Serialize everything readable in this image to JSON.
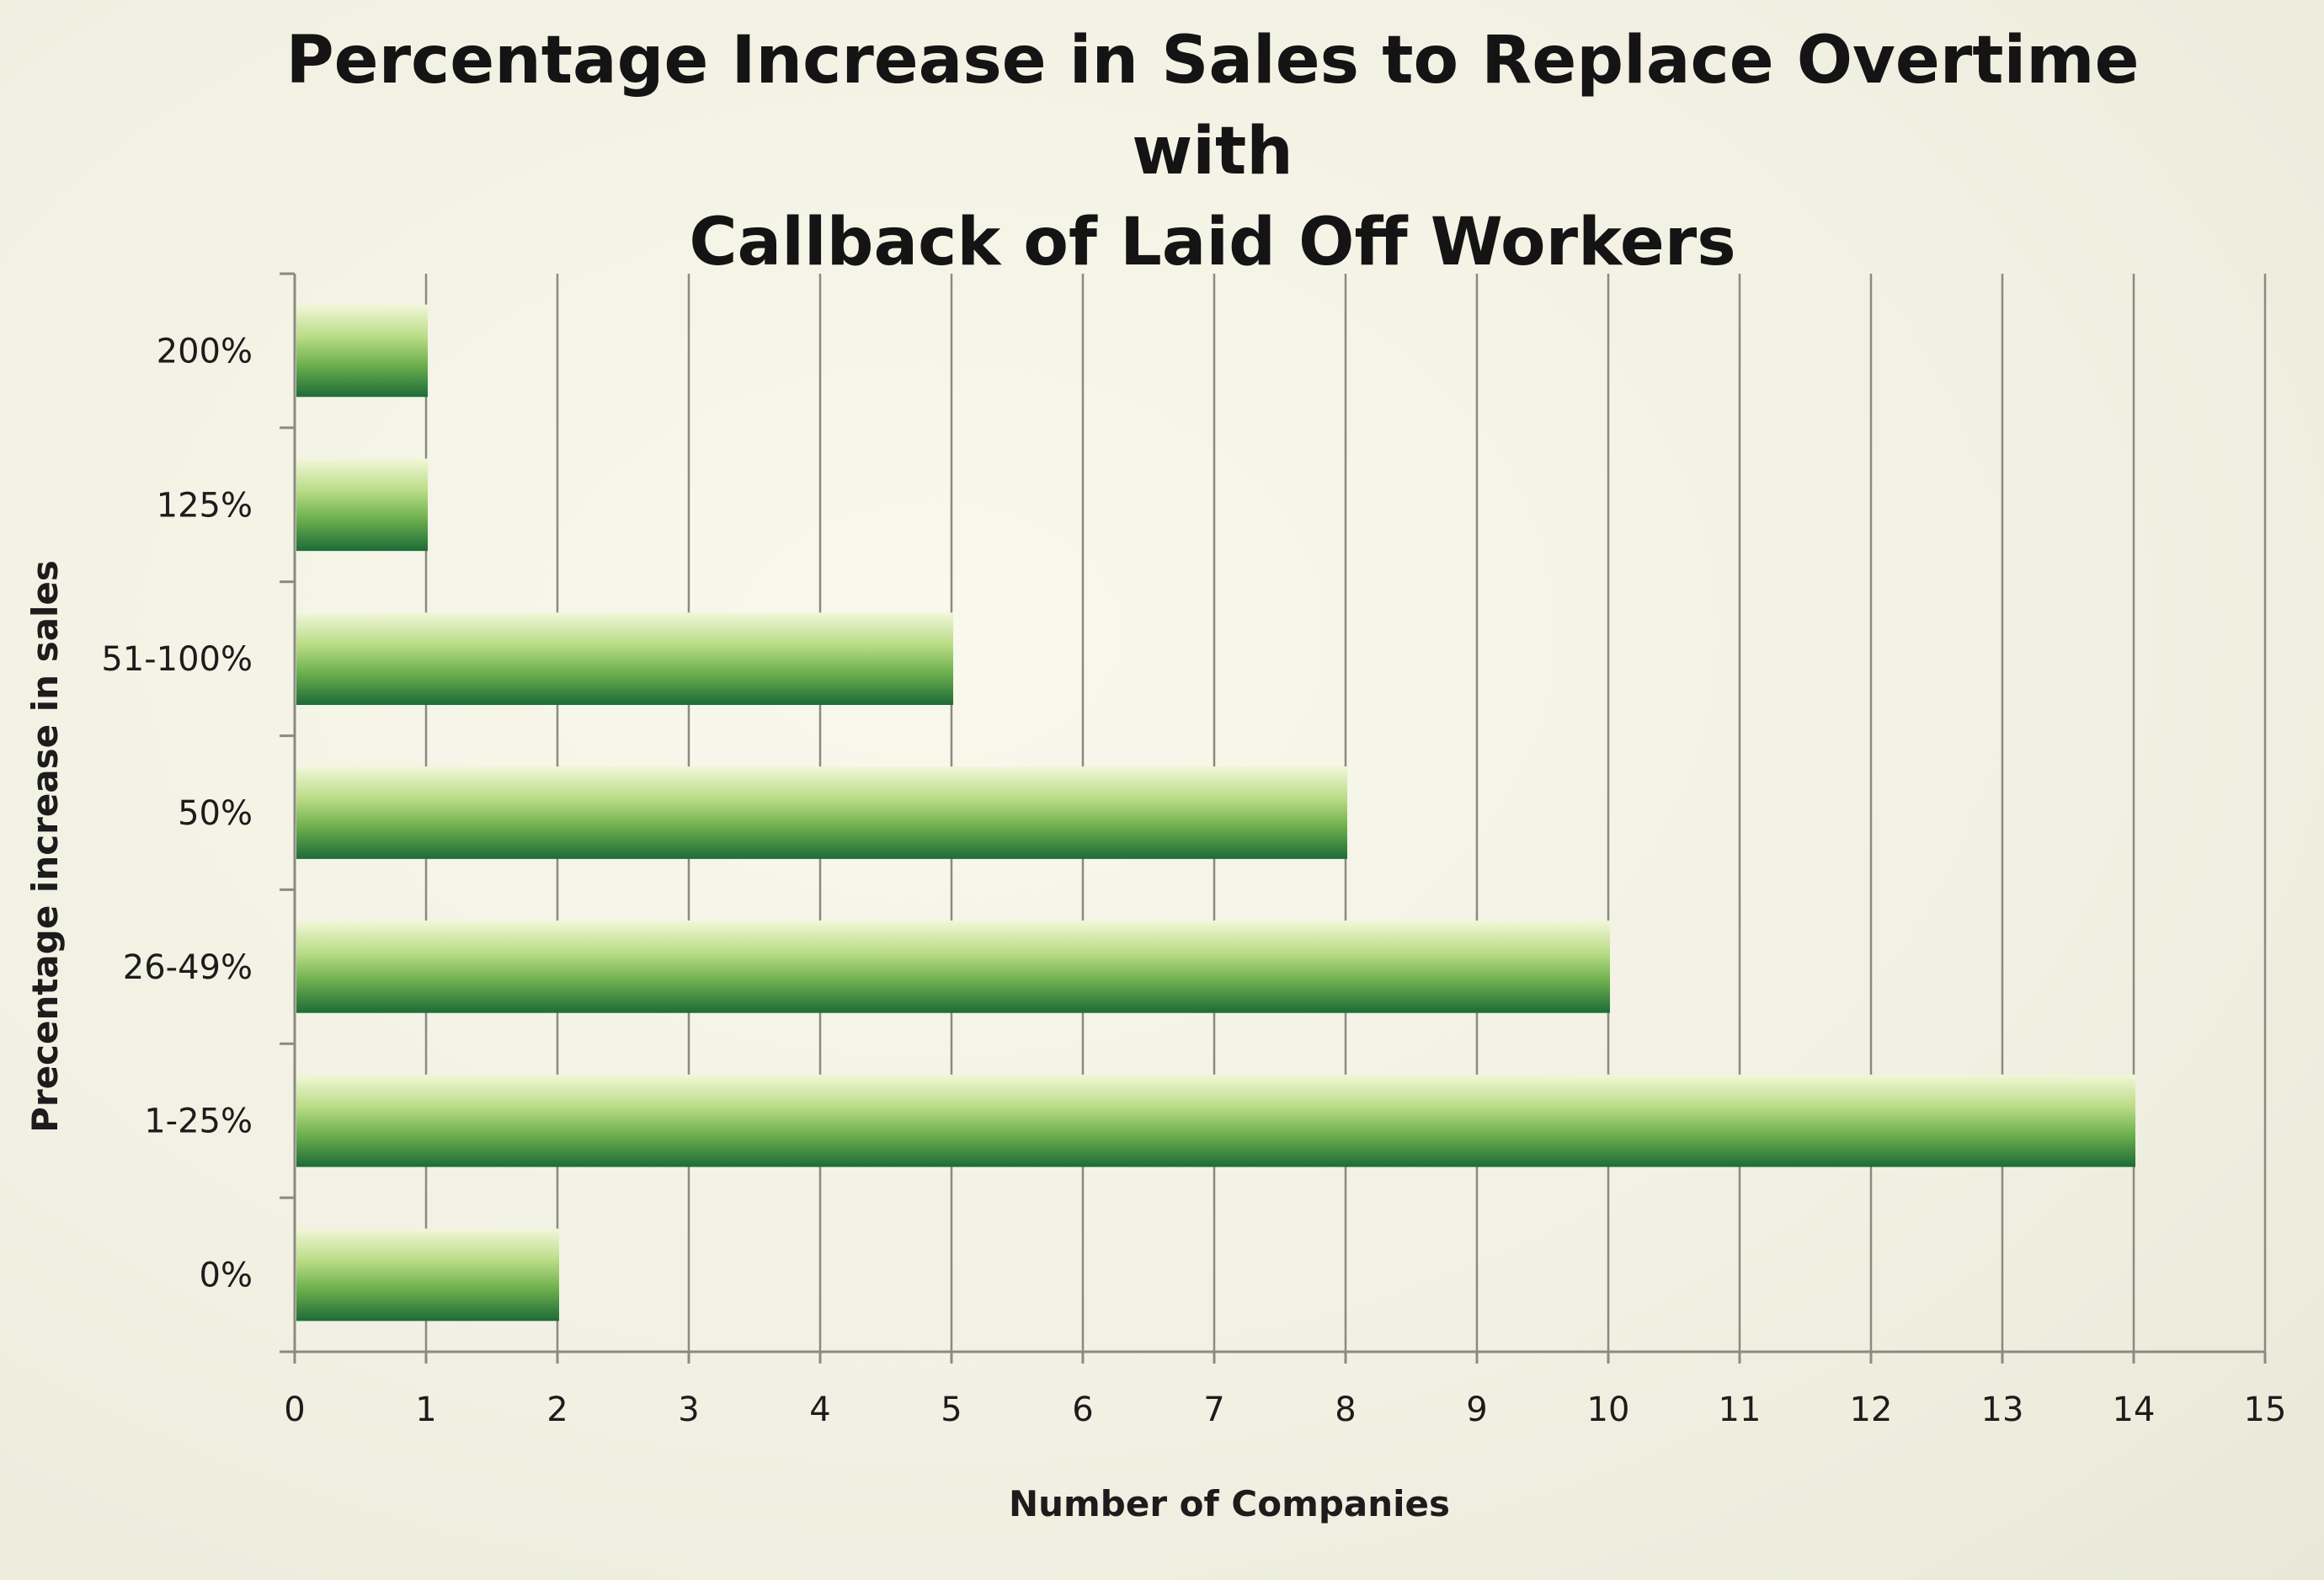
{
  "chart_data": {
    "type": "bar",
    "orientation": "horizontal",
    "title": "Percentage Increase in Sales to Replace Overtime with Callback of Laid Off Workers",
    "title_lines": [
      "Percentage Increase in Sales to Replace Overtime with",
      "Callback of Laid Off Workers"
    ],
    "xlabel": "Number of Companies",
    "ylabel": "Precentage increase in sales",
    "categories": [
      "200%",
      "125%",
      "51-100%",
      "50%",
      "26-49%",
      "1-25%",
      "0%"
    ],
    "values": [
      1,
      1,
      5,
      8,
      10,
      14,
      2
    ],
    "xlim": [
      0,
      15
    ],
    "xticks": [
      "0",
      "1",
      "2",
      "3",
      "4",
      "5",
      "6",
      "7",
      "8",
      "9",
      "10",
      "11",
      "12",
      "13",
      "14",
      "15"
    ],
    "grid": "vertical",
    "legend": "none",
    "colors": {
      "bar_light": "#eef5d2",
      "bar_mid": "#8fc45a",
      "bar_dark": "#1f6f3a",
      "gridline": "#8a8a82",
      "background": "#f3f2e4"
    }
  }
}
